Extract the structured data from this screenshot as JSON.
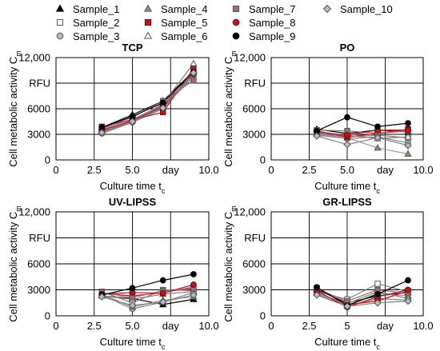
{
  "legend": [
    {
      "name": "Sample_1",
      "marker": "triangle",
      "fill": "#000000",
      "stroke": "#000000"
    },
    {
      "name": "Sample_2",
      "marker": "square",
      "fill": "#ffffff",
      "stroke": "#555555"
    },
    {
      "name": "Sample_3",
      "marker": "circle",
      "fill": "#a9c1cc",
      "stroke": "#555555"
    },
    {
      "name": "Sample_4",
      "marker": "triangle",
      "fill": "#9a8a8a",
      "stroke": "#555555"
    },
    {
      "name": "Sample_5",
      "marker": "square",
      "fill": "#c0141c",
      "stroke": "#7a0000"
    },
    {
      "name": "Sample_6",
      "marker": "triangle",
      "fill": "#ffffff",
      "stroke": "#555555"
    },
    {
      "name": "Sample_7",
      "marker": "square",
      "fill": "#9a6e6e",
      "stroke": "#555555"
    },
    {
      "name": "Sample_8",
      "marker": "circle",
      "fill": "#c0141c",
      "stroke": "#7a0000"
    },
    {
      "name": "Sample_9",
      "marker": "circle",
      "fill": "#000000",
      "stroke": "#000000"
    },
    {
      "name": "Sample_10",
      "marker": "diamond",
      "fill": "#a9c1cc",
      "stroke": "#555555"
    }
  ],
  "line_colors": {
    "Sample_1": "#000000",
    "Sample_2": "#7f7f7f",
    "Sample_3": "#7f7f7f",
    "Sample_4": "#b08a8a",
    "Sample_5": "#c0141c",
    "Sample_6": "#7f7f7f",
    "Sample_7": "#9a6e6e",
    "Sample_8": "#c0141c",
    "Sample_9": "#000000",
    "Sample_10": "#7f7f7f"
  },
  "chart_data": [
    {
      "type": "line",
      "title": "TCP",
      "xlabel": "Culture time t",
      "xlabel_sub": "c",
      "ylabel": "Cell metabolic activity C",
      "ylabel_sub": "m",
      "xlim": [
        0,
        10
      ],
      "ylim": [
        0,
        12000
      ],
      "xticks": [
        {
          "value": 0,
          "label": "0"
        },
        {
          "value": 2.5,
          "label": "2.5"
        },
        {
          "value": 5,
          "label": "5.0"
        },
        {
          "value": 7.5,
          "label": "day"
        },
        {
          "value": 10,
          "label": "10.0"
        }
      ],
      "yticks": [
        {
          "value": 0,
          "label": "0"
        },
        {
          "value": 3000,
          "label": "3000"
        },
        {
          "value": 6000,
          "label": "6000"
        },
        {
          "value": 9000,
          "label": "RFU"
        },
        {
          "value": 12000,
          "label": "12,000"
        }
      ],
      "grid": true,
      "x": [
        3,
        5,
        7,
        9
      ],
      "series": [
        {
          "name": "Sample_1",
          "values": [
            3800,
            5300,
            6900,
            10400
          ]
        },
        {
          "name": "Sample_2",
          "values": [
            3300,
            4600,
            6200,
            9700
          ]
        },
        {
          "name": "Sample_3",
          "values": [
            3100,
            4400,
            6000,
            10000
          ]
        },
        {
          "name": "Sample_4",
          "values": [
            3600,
            4800,
            6400,
            10500
          ]
        },
        {
          "name": "Sample_5",
          "values": [
            3900,
            4700,
            5600,
            10700
          ]
        },
        {
          "name": "Sample_6",
          "values": [
            3400,
            4600,
            6600,
            11300
          ]
        },
        {
          "name": "Sample_7",
          "values": [
            3700,
            5000,
            6900,
            9300
          ]
        },
        {
          "name": "Sample_8",
          "values": [
            3500,
            4600,
            6300,
            10100
          ]
        },
        {
          "name": "Sample_9",
          "values": [
            3800,
            5100,
            6700,
            10300
          ]
        },
        {
          "name": "Sample_10",
          "values": [
            3200,
            4500,
            6100,
            10200
          ]
        }
      ]
    },
    {
      "type": "line",
      "title": "PO",
      "xlabel": "Culture time t",
      "xlabel_sub": "c",
      "ylabel": "Cell metabolic activity C",
      "ylabel_sub": "m",
      "xlim": [
        0,
        10
      ],
      "ylim": [
        0,
        12000
      ],
      "xticks": [
        {
          "value": 0,
          "label": "0"
        },
        {
          "value": 2.5,
          "label": "2.5"
        },
        {
          "value": 5,
          "label": "5.0"
        },
        {
          "value": 7.5,
          "label": "day"
        },
        {
          "value": 10,
          "label": "10.0"
        }
      ],
      "yticks": [
        {
          "value": 0,
          "label": "0"
        },
        {
          "value": 3000,
          "label": "3000"
        },
        {
          "value": 6000,
          "label": "6000"
        },
        {
          "value": 9000,
          "label": "RFU"
        },
        {
          "value": 12000,
          "label": "12,000"
        }
      ],
      "grid": true,
      "x": [
        3,
        5,
        7,
        9
      ],
      "series": [
        {
          "name": "Sample_1",
          "values": [
            3600,
            3100,
            3500,
            3300
          ]
        },
        {
          "name": "Sample_2",
          "values": [
            3100,
            2700,
            2900,
            2600
          ]
        },
        {
          "name": "Sample_3",
          "values": [
            2900,
            2500,
            2700,
            2000
          ]
        },
        {
          "name": "Sample_4",
          "values": [
            3000,
            2600,
            1400,
            700
          ]
        },
        {
          "name": "Sample_5",
          "values": [
            3400,
            2700,
            3100,
            3600
          ]
        },
        {
          "name": "Sample_6",
          "values": [
            3200,
            2900,
            2500,
            2700
          ]
        },
        {
          "name": "Sample_7",
          "values": [
            3500,
            3400,
            3100,
            3400
          ]
        },
        {
          "name": "Sample_8",
          "values": [
            3300,
            2900,
            3500,
            3500
          ]
        },
        {
          "name": "Sample_9",
          "values": [
            3400,
            5000,
            3900,
            4300
          ]
        },
        {
          "name": "Sample_10",
          "values": [
            2800,
            1800,
            2600,
            1700
          ]
        }
      ]
    },
    {
      "type": "line",
      "title": "UV-LIPSS",
      "xlabel": "Culture time t",
      "xlabel_sub": "c",
      "ylabel": "Cell metabolic activity C",
      "ylabel_sub": "m",
      "xlim": [
        0,
        10
      ],
      "ylim": [
        0,
        12000
      ],
      "xticks": [
        {
          "value": 0,
          "label": "0"
        },
        {
          "value": 2.5,
          "label": "2.5"
        },
        {
          "value": 5,
          "label": "5.0"
        },
        {
          "value": 7.5,
          "label": "day"
        },
        {
          "value": 10,
          "label": "10.0"
        }
      ],
      "yticks": [
        {
          "value": 0,
          "label": "0"
        },
        {
          "value": 3000,
          "label": "3000"
        },
        {
          "value": 6000,
          "label": "6000"
        },
        {
          "value": 9000,
          "label": "RFU"
        },
        {
          "value": 12000,
          "label": "12,000"
        }
      ],
      "grid": true,
      "x": [
        3,
        5,
        7,
        9
      ],
      "series": [
        {
          "name": "Sample_1",
          "values": [
            2300,
            2000,
            1300,
            1900
          ]
        },
        {
          "name": "Sample_2",
          "values": [
            2800,
            1500,
            3000,
            2900
          ]
        },
        {
          "name": "Sample_3",
          "values": [
            2400,
            800,
            1600,
            2700
          ]
        },
        {
          "name": "Sample_4",
          "values": [
            2500,
            1000,
            1800,
            2200
          ]
        },
        {
          "name": "Sample_5",
          "values": [
            2600,
            2300,
            2700,
            3300
          ]
        },
        {
          "name": "Sample_6",
          "values": [
            2300,
            1900,
            2500,
            2800
          ]
        },
        {
          "name": "Sample_7",
          "values": [
            2700,
            2100,
            2900,
            3100
          ]
        },
        {
          "name": "Sample_8",
          "values": [
            2500,
            2700,
            2600,
            3600
          ]
        },
        {
          "name": "Sample_9",
          "values": [
            2400,
            3200,
            4100,
            4800
          ]
        },
        {
          "name": "Sample_10",
          "values": [
            2200,
            1200,
            1600,
            2400
          ]
        }
      ]
    },
    {
      "type": "line",
      "title": "GR-LIPSS",
      "xlabel": "Culture time t",
      "xlabel_sub": "c",
      "ylabel": "Cell metabolic activity C",
      "ylabel_sub": "m",
      "xlim": [
        0,
        10
      ],
      "ylim": [
        0,
        12000
      ],
      "xticks": [
        {
          "value": 0,
          "label": "0"
        },
        {
          "value": 2.5,
          "label": "2.5"
        },
        {
          "value": 5,
          "label": "5"
        },
        {
          "value": 7.5,
          "label": "day"
        },
        {
          "value": 10,
          "label": "10.0"
        }
      ],
      "yticks": [
        {
          "value": 0,
          "label": "0"
        },
        {
          "value": 3000,
          "label": "3000"
        },
        {
          "value": 6000,
          "label": "6000"
        },
        {
          "value": 9000,
          "label": "RFU"
        },
        {
          "value": 12000,
          "label": "12,000"
        }
      ],
      "grid": true,
      "x": [
        3,
        5,
        7,
        9
      ],
      "series": [
        {
          "name": "Sample_1",
          "values": [
            3000,
            1500,
            2300,
            2700
          ]
        },
        {
          "name": "Sample_2",
          "values": [
            2800,
            1900,
            3700,
            2800
          ]
        },
        {
          "name": "Sample_3",
          "values": [
            2500,
            1100,
            2000,
            1800
          ]
        },
        {
          "name": "Sample_4",
          "values": [
            2700,
            1200,
            2600,
            2300
          ]
        },
        {
          "name": "Sample_5",
          "values": [
            3200,
            1300,
            1700,
            2900
          ]
        },
        {
          "name": "Sample_6",
          "values": [
            2600,
            1400,
            2800,
            2000
          ]
        },
        {
          "name": "Sample_7",
          "values": [
            3100,
            1700,
            3000,
            2600
          ]
        },
        {
          "name": "Sample_8",
          "values": [
            2900,
            1000,
            2200,
            3000
          ]
        },
        {
          "name": "Sample_9",
          "values": [
            3300,
            1200,
            2500,
            4100
          ]
        },
        {
          "name": "Sample_10",
          "values": [
            2400,
            1100,
            1500,
            1700
          ]
        }
      ]
    }
  ]
}
